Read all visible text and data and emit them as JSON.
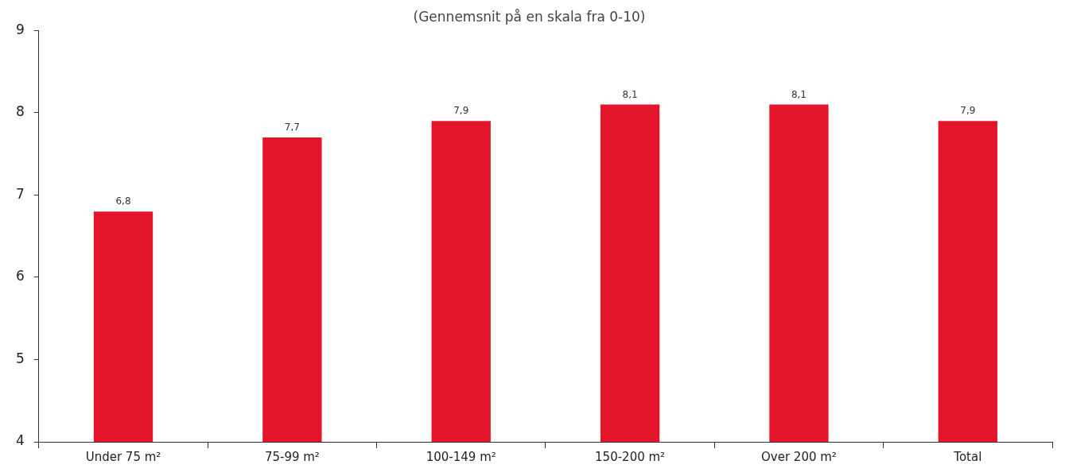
{
  "chart_data": {
    "type": "bar",
    "title": "(Gennemsnit på en skala fra 0-10)",
    "categories": [
      "Under 75 m²",
      "75-99 m²",
      "100-149 m²",
      "150-200 m²",
      "Over 200 m²",
      "Total"
    ],
    "values": [
      6.8,
      7.7,
      7.9,
      8.1,
      8.1,
      7.9
    ],
    "color": "#e4142b",
    "value_labels": [
      "6,8",
      "7,7",
      "7,9",
      "8,1",
      "8,1",
      "7,9"
    ],
    "ylim": [
      4,
      9
    ],
    "yticks": [
      4,
      5,
      6,
      7,
      8,
      9
    ],
    "grid": false,
    "legend": false
  }
}
